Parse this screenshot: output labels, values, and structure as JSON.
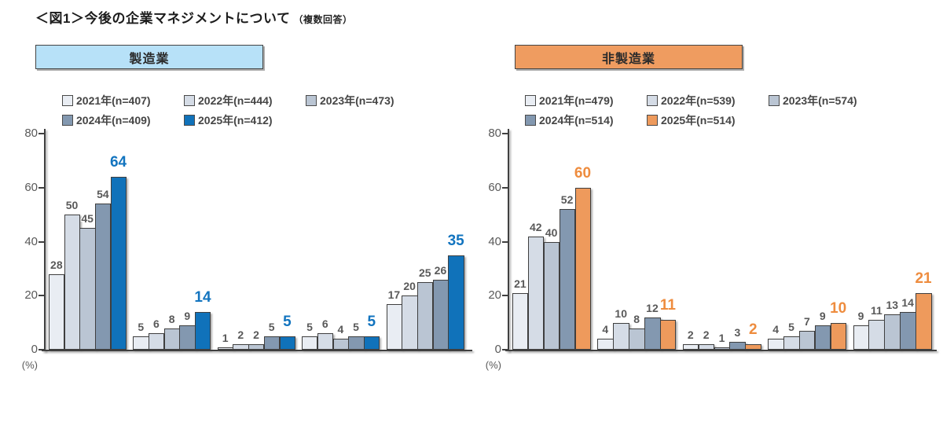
{
  "title": {
    "main": "＜図1＞今後の企業マネジメントについて",
    "note": "（複数回答）"
  },
  "colors": {
    "label_gray": "#595959",
    "axis_line": "#404040",
    "manufacturing_accent": "#1274bf",
    "non_manufacturing_accent": "#ee8c3e"
  },
  "chart_data": [
    {
      "type": "bar",
      "title": "製造業",
      "header_bg": "#b7e1f8",
      "accent_color": "#1274bf",
      "ylabel": "(%)",
      "ylim": [
        0,
        80
      ],
      "yticks": [
        0,
        20,
        40,
        60,
        80
      ],
      "grid": false,
      "legend_position": "top",
      "categories": [
        "",
        "",
        "",
        "",
        ""
      ],
      "series": [
        {
          "name": "2021年(n=407)",
          "color": "#e9edf3",
          "values": [
            28,
            5,
            1,
            5,
            17
          ]
        },
        {
          "name": "2022年(n=444)",
          "color": "#d5dce6",
          "values": [
            50,
            6,
            2,
            6,
            20
          ]
        },
        {
          "name": "2023年(n=473)",
          "color": "#bac5d3",
          "values": [
            45,
            8,
            2,
            4,
            25
          ]
        },
        {
          "name": "2024年(n=409)",
          "color": "#8398b0",
          "values": [
            54,
            9,
            5,
            5,
            26
          ]
        },
        {
          "name": "2025年(n=412)",
          "color": "#1072ba",
          "values": [
            64,
            14,
            5,
            5,
            35
          ]
        }
      ]
    },
    {
      "type": "bar",
      "title": "非製造業",
      "header_bg": "#ef9c60",
      "accent_color": "#ee8c3e",
      "ylabel": "(%)",
      "ylim": [
        0,
        80
      ],
      "yticks": [
        0,
        20,
        40,
        60,
        80
      ],
      "grid": false,
      "legend_position": "top",
      "categories": [
        "",
        "",
        "",
        "",
        ""
      ],
      "series": [
        {
          "name": "2021年(n=479)",
          "color": "#e9edf3",
          "values": [
            21,
            4,
            2,
            4,
            9
          ]
        },
        {
          "name": "2022年(n=539)",
          "color": "#d5dce6",
          "values": [
            42,
            10,
            2,
            5,
            11
          ]
        },
        {
          "name": "2023年(n=574)",
          "color": "#bac5d3",
          "values": [
            40,
            8,
            1,
            7,
            13
          ]
        },
        {
          "name": "2024年(n=514)",
          "color": "#8398b0",
          "values": [
            52,
            12,
            3,
            9,
            14
          ]
        },
        {
          "name": "2025年(n=514)",
          "color": "#ee9a5c",
          "values": [
            60,
            11,
            2,
            10,
            21
          ]
        }
      ]
    }
  ]
}
